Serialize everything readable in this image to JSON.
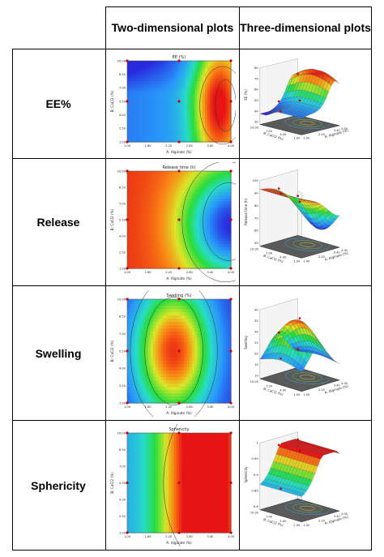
{
  "headers": {
    "col1": "Two-dimensional plots",
    "col2": "Three-dimensional plots"
  },
  "rows": [
    {
      "label": "EE%",
      "contour_title": "EE (%)",
      "contour_xlabel": "A: Alginate (%)",
      "contour_ylabel": "B: CaCl2 (%)",
      "surface_zlabel": "EE (%)",
      "surface_xlabel": "A: Alginate (%)",
      "surface_ylabel": "B: CaCl2 (%)",
      "surface_zticks": [
        "80",
        "70",
        "60",
        "50",
        "40",
        "30"
      ],
      "palette": "ee"
    },
    {
      "label": "Release",
      "contour_title": "Release time (h)",
      "contour_xlabel": "A: Alginate (%)",
      "contour_ylabel": "B: CaCl2 (%)",
      "surface_zlabel": "Release time (h)",
      "surface_xlabel": "A: Alginate (%)",
      "surface_ylabel": "B: CaCl2 (%)",
      "surface_zticks": [
        "100",
        "90",
        "80",
        "70",
        "60",
        "50"
      ],
      "palette": "release"
    },
    {
      "label": "Swelling",
      "contour_title": "Swelling (%)",
      "contour_xlabel": "A: Alginate (%)",
      "contour_ylabel": "B: CaCl2 (%)",
      "surface_zlabel": "Swelling",
      "surface_xlabel": "A: Alginate (%)",
      "surface_ylabel": "B: CaCl2 (%)",
      "surface_zticks": [
        "40",
        "35",
        "30",
        "25",
        "20",
        "15",
        "10"
      ],
      "palette": "swelling"
    },
    {
      "label": "Sphericity",
      "contour_title": "Sphericity",
      "contour_xlabel": "A: Alginate (%)",
      "contour_ylabel": "B: CaCl2 (%)",
      "surface_zlabel": "Sphericity",
      "surface_xlabel": "A: Alginate (%)",
      "surface_ylabel": "B: CaCl2 (%)",
      "surface_zticks": [
        "1",
        "0.95",
        "0.9",
        "0.85",
        "0.8"
      ],
      "palette": "sphericity"
    }
  ],
  "x_ticks": [
    "1.00",
    "1.60",
    "2.20",
    "2.80",
    "3.40",
    "4.00"
  ],
  "y_ticks": [
    "10.00",
    "8.50",
    "7.00",
    "5.50",
    "4.00",
    "2.50",
    "1.00"
  ],
  "surface_x_ticks": [
    "1.00",
    "1.60",
    "2.20",
    "2.80",
    "3.40",
    "4.00"
  ],
  "surface_y_ticks": [
    "1.00",
    "2.50",
    "4.00",
    "5.50",
    "7.00",
    "8.50",
    "10.00"
  ]
}
